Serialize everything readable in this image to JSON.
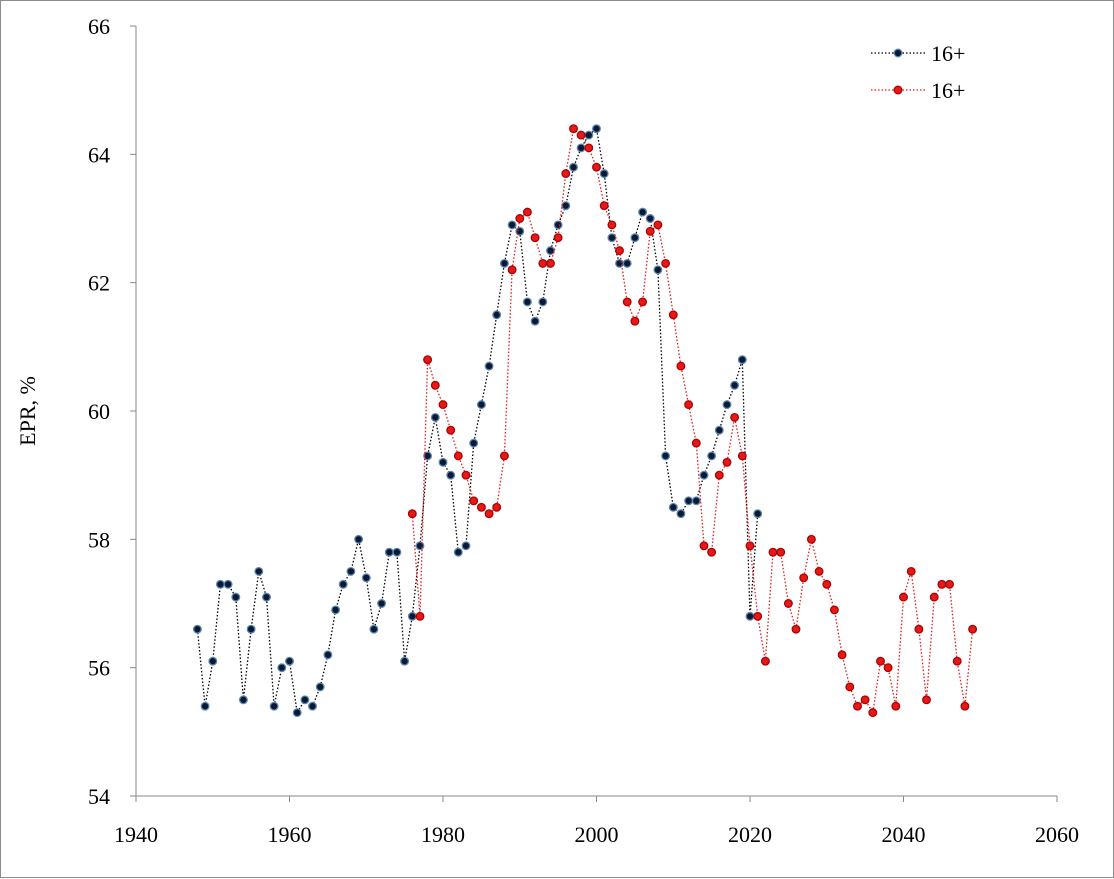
{
  "chart_data": {
    "type": "line",
    "title": "",
    "xlabel": "",
    "ylabel": "EPR, %",
    "xlim": [
      1940,
      2060
    ],
    "ylim": [
      54,
      66
    ],
    "x_ticks": [
      "1940",
      "1960",
      "1980",
      "2000",
      "2020",
      "2040",
      "2060"
    ],
    "y_ticks": [
      "54",
      "56",
      "58",
      "60",
      "62",
      "64",
      "66"
    ],
    "grid": false,
    "legend_position": "top-right",
    "series": [
      {
        "name": "16+",
        "color": "#000000",
        "marker_fill": "#0a1a33",
        "marker_edge": "#5b84b1",
        "line_style": "dotted",
        "x": [
          1948,
          1949,
          1950,
          1951,
          1952,
          1953,
          1954,
          1955,
          1956,
          1957,
          1958,
          1959,
          1960,
          1961,
          1962,
          1963,
          1964,
          1965,
          1966,
          1967,
          1968,
          1969,
          1970,
          1971,
          1972,
          1973,
          1974,
          1975,
          1976,
          1977,
          1978,
          1979,
          1980,
          1981,
          1982,
          1983,
          1984,
          1985,
          1986,
          1987,
          1988,
          1989,
          1990,
          1991,
          1992,
          1993,
          1994,
          1995,
          1996,
          1997,
          1998,
          1999,
          2000,
          2001,
          2002,
          2003,
          2004,
          2005,
          2006,
          2007,
          2008,
          2009,
          2010,
          2011,
          2012,
          2013,
          2014,
          2015,
          2016,
          2017,
          2018,
          2019,
          2020,
          2021
        ],
        "y": [
          56.6,
          55.4,
          56.1,
          57.3,
          57.3,
          57.1,
          55.5,
          56.6,
          57.5,
          57.1,
          55.4,
          56.0,
          56.1,
          55.3,
          55.5,
          55.4,
          55.7,
          56.2,
          56.9,
          57.3,
          57.5,
          58.0,
          57.4,
          56.6,
          57.0,
          57.8,
          57.8,
          56.1,
          56.8,
          57.9,
          59.3,
          59.9,
          59.2,
          59.0,
          57.8,
          57.9,
          59.5,
          60.1,
          60.7,
          61.5,
          62.3,
          62.9,
          62.8,
          61.7,
          61.4,
          61.7,
          62.5,
          62.9,
          63.2,
          63.8,
          64.1,
          64.3,
          64.4,
          63.7,
          62.7,
          62.3,
          62.3,
          62.7,
          63.1,
          63.0,
          62.2,
          59.3,
          58.5,
          58.4,
          58.6,
          58.6,
          59.0,
          59.3,
          59.7,
          60.1,
          60.4,
          60.8,
          56.8,
          58.4
        ]
      },
      {
        "name": "16+",
        "color": "#e41a1a",
        "marker_fill": "#e41a1a",
        "marker_edge": "#b00000",
        "line_style": "dotted",
        "x": [
          1976,
          1977,
          1978,
          1979,
          1980,
          1981,
          1982,
          1983,
          1984,
          1985,
          1986,
          1987,
          1988,
          1989,
          1990,
          1991,
          1992,
          1993,
          1994,
          1995,
          1996,
          1997,
          1998,
          1999,
          2000,
          2001,
          2002,
          2003,
          2004,
          2005,
          2006,
          2007,
          2008,
          2009,
          2010,
          2011,
          2012,
          2013,
          2014,
          2015,
          2016,
          2017,
          2018,
          2019,
          2020,
          2021,
          2022,
          2023,
          2024,
          2025,
          2026,
          2027,
          2028,
          2029,
          2030,
          2031,
          2032,
          2033,
          2034,
          2035,
          2036,
          2037,
          2038,
          2039,
          2040,
          2041,
          2042,
          2043,
          2044,
          2045,
          2046,
          2047,
          2048,
          2049
        ],
        "y": [
          58.4,
          56.8,
          60.8,
          60.4,
          60.1,
          59.7,
          59.3,
          59.0,
          58.6,
          58.5,
          58.4,
          58.5,
          59.3,
          62.2,
          63.0,
          63.1,
          62.7,
          62.3,
          62.3,
          62.7,
          63.7,
          64.4,
          64.3,
          64.1,
          63.8,
          63.2,
          62.9,
          62.5,
          61.7,
          61.4,
          61.7,
          62.8,
          62.9,
          62.3,
          61.5,
          60.7,
          60.1,
          59.5,
          57.9,
          57.8,
          59.0,
          59.2,
          59.9,
          59.3,
          57.9,
          56.8,
          56.1,
          57.8,
          57.8,
          57.0,
          56.6,
          57.4,
          58.0,
          57.5,
          57.3,
          56.9,
          56.2,
          55.7,
          55.4,
          55.5,
          55.3,
          56.1,
          56.0,
          55.4,
          57.1,
          57.5,
          56.6,
          55.5,
          57.1,
          57.3,
          57.3,
          56.1,
          55.4,
          56.6
        ]
      }
    ]
  }
}
